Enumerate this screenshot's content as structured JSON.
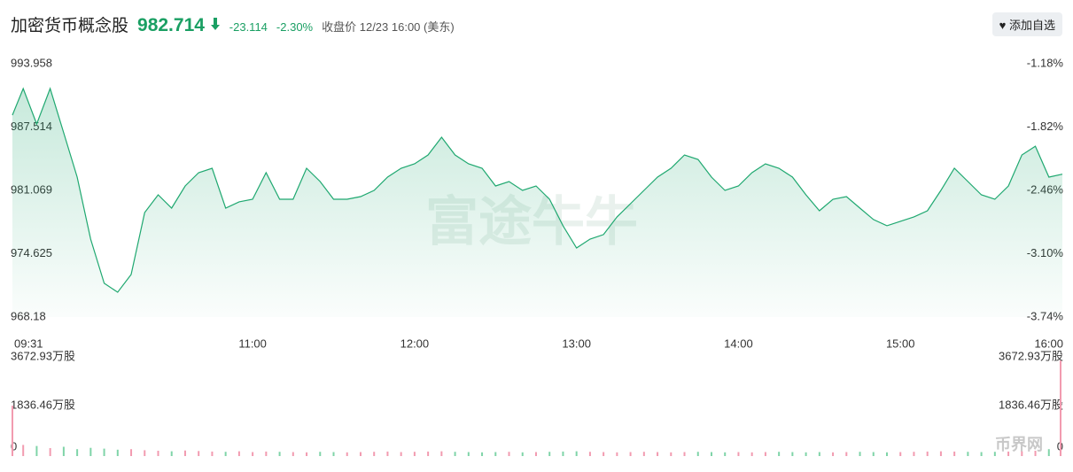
{
  "header": {
    "title": "加密货币概念股",
    "price": "982.714",
    "change": "-23.114",
    "change_pct": "-2.30%",
    "status": "收盘价 12/23 16:00 (美东)",
    "button": "添加自选"
  },
  "watermarks": [
    "富途牛牛",
    "币界网"
  ],
  "chart_data": [
    {
      "type": "line",
      "x": [
        "09:31",
        "09:35",
        "09:40",
        "09:45",
        "09:50",
        "09:55",
        "10:00",
        "10:05",
        "10:10",
        "10:15",
        "10:20",
        "10:25",
        "10:30",
        "10:35",
        "10:40",
        "10:45",
        "10:50",
        "10:55",
        "11:00",
        "11:05",
        "11:10",
        "11:15",
        "11:20",
        "11:25",
        "11:30",
        "11:35",
        "11:40",
        "11:45",
        "11:50",
        "11:55",
        "12:00",
        "12:05",
        "12:10",
        "12:15",
        "12:20",
        "12:25",
        "12:30",
        "12:35",
        "12:40",
        "12:45",
        "12:50",
        "12:55",
        "13:00",
        "13:05",
        "13:10",
        "13:15",
        "13:20",
        "13:25",
        "13:30",
        "13:35",
        "13:40",
        "13:45",
        "13:50",
        "13:55",
        "14:00",
        "14:05",
        "14:10",
        "14:15",
        "14:20",
        "14:25",
        "14:30",
        "14:35",
        "14:40",
        "14:45",
        "14:50",
        "14:55",
        "15:00",
        "15:05",
        "15:10",
        "15:15",
        "15:20",
        "15:25",
        "15:30",
        "15:35",
        "15:40",
        "15:45",
        "15:50",
        "15:55",
        "16:00"
      ],
      "series": [
        {
          "name": "加密货币概念股",
          "color": "#1fa870",
          "values": [
            988.73,
            991.43,
            987.83,
            991.43,
            986.93,
            982.42,
            976.11,
            971.61,
            970.7,
            972.51,
            978.82,
            980.62,
            979.27,
            981.52,
            982.87,
            983.32,
            979.27,
            979.91,
            980.17,
            982.87,
            980.17,
            980.17,
            983.32,
            981.97,
            980.17,
            980.17,
            980.44,
            981.07,
            982.42,
            983.32,
            983.77,
            984.67,
            986.48,
            984.67,
            983.77,
            983.32,
            981.52,
            981.97,
            981.07,
            981.52,
            980.17,
            977.47,
            975.21,
            976.11,
            976.57,
            978.37,
            979.72,
            981.07,
            982.42,
            983.32,
            984.67,
            984.22,
            982.42,
            981.07,
            981.52,
            982.87,
            983.77,
            983.32,
            982.42,
            980.62,
            979.0,
            980.17,
            980.44,
            979.27,
            978.1,
            977.47,
            977.92,
            978.37,
            979.0,
            981.07,
            983.32,
            981.97,
            980.62,
            980.17,
            981.52,
            984.67,
            985.57,
            982.42,
            982.714
          ]
        }
      ],
      "xticks": [
        "09:31",
        "11:00",
        "12:00",
        "13:00",
        "14:00",
        "15:00",
        "16:00"
      ],
      "ylim": [
        968.18,
        993.958
      ],
      "yticks": [
        993.958,
        987.514,
        981.069,
        974.625,
        968.18
      ],
      "y2lim": [
        -3.74,
        -1.18
      ],
      "y2ticks": [
        {
          "value": -1.18,
          "label": "-1.18%"
        },
        {
          "value": -1.82,
          "label": "-1.82%"
        },
        {
          "value": -2.46,
          "label": "-2.46%"
        },
        {
          "value": -3.1,
          "label": "-3.10%"
        },
        {
          "value": -3.74,
          "label": "-3.74%"
        }
      ],
      "grid": false
    },
    {
      "type": "bar",
      "values": [
        1900,
        420,
        380,
        300,
        350,
        260,
        310,
        280,
        240,
        260,
        220,
        200,
        180,
        210,
        190,
        170,
        160,
        180,
        150,
        170,
        160,
        150,
        140,
        160,
        150,
        140,
        150,
        160,
        170,
        150,
        160,
        170,
        180,
        160,
        150,
        140,
        150,
        160,
        140,
        150,
        160,
        170,
        180,
        160,
        150,
        140,
        150,
        160,
        150,
        140,
        150,
        160,
        150,
        140,
        150,
        140,
        150,
        160,
        150,
        140,
        150,
        140,
        150,
        160,
        150,
        140,
        150,
        160,
        170,
        180,
        170,
        160,
        150,
        160,
        170,
        180,
        200,
        260,
        3600
      ],
      "up_color": "#f29bb0",
      "down_color": "#7fd4a8",
      "ylim": [
        0,
        3672.93
      ],
      "yticks": [
        {
          "value": 3672.93,
          "label": "3672.93万股"
        },
        {
          "value": 1836.46,
          "label": "1836.46万股"
        },
        0
      ]
    }
  ]
}
